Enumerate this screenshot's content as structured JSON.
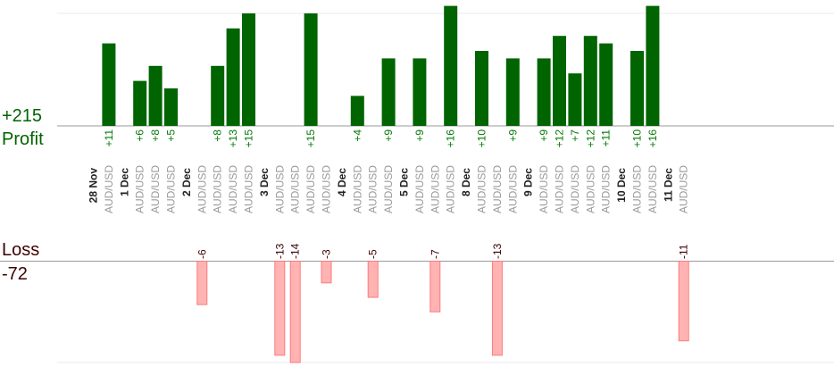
{
  "summary": {
    "profit_total": "+215",
    "profit_label": "Profit",
    "loss_label": "Loss",
    "loss_total": "-72"
  },
  "colors": {
    "profit_bar": "#006400",
    "profit_text": "#007a00",
    "loss_bar": "#ffb3b3",
    "loss_bar_stroke": "#ff7a7a",
    "loss_text": "#3d0000",
    "axis": "#999999",
    "grid": "#e8e8e8",
    "date_text": "#222222",
    "pair_text": "#9a9a9a"
  },
  "chart_data": {
    "type": "bar",
    "description_axis_units": "pips per trade",
    "profit_axis_max": 15,
    "loss_axis_max": 14,
    "grid": true,
    "columns": [
      {
        "kind": "date",
        "label": "28 Nov"
      },
      {
        "kind": "trade",
        "pair": "AUD/USD",
        "value": 11,
        "label": "+11"
      },
      {
        "kind": "date",
        "label": "1 Dec"
      },
      {
        "kind": "trade",
        "pair": "AUD/USD",
        "value": 6,
        "label": "+6"
      },
      {
        "kind": "trade",
        "pair": "AUD/USD",
        "value": 8,
        "label": "+8"
      },
      {
        "kind": "trade",
        "pair": "AUD/USD",
        "value": 5,
        "label": "+5"
      },
      {
        "kind": "date",
        "label": "2 Dec"
      },
      {
        "kind": "trade",
        "pair": "AUD/USD",
        "value": -6,
        "label": "-6"
      },
      {
        "kind": "trade",
        "pair": "AUD/USD",
        "value": 8,
        "label": "+8"
      },
      {
        "kind": "trade",
        "pair": "AUD/USD",
        "value": 13,
        "label": "+13"
      },
      {
        "kind": "trade",
        "pair": "AUD/USD",
        "value": 15,
        "label": "+15"
      },
      {
        "kind": "date",
        "label": "3 Dec"
      },
      {
        "kind": "trade",
        "pair": "AUD/USD",
        "value": -13,
        "label": "-13"
      },
      {
        "kind": "trade",
        "pair": "AUD/USD",
        "value": -14,
        "label": "-14"
      },
      {
        "kind": "trade",
        "pair": "AUD/USD",
        "value": 15,
        "label": "+15"
      },
      {
        "kind": "trade",
        "pair": "AUD/USD",
        "value": -3,
        "label": "-3"
      },
      {
        "kind": "date",
        "label": "4 Dec"
      },
      {
        "kind": "trade",
        "pair": "AUD/USD",
        "value": 4,
        "label": "+4"
      },
      {
        "kind": "trade",
        "pair": "AUD/USD",
        "value": -5,
        "label": "-5"
      },
      {
        "kind": "trade",
        "pair": "AUD/USD",
        "value": 9,
        "label": "+9"
      },
      {
        "kind": "date",
        "label": "5 Dec"
      },
      {
        "kind": "trade",
        "pair": "AUD/USD",
        "value": 9,
        "label": "+9"
      },
      {
        "kind": "trade",
        "pair": "AUD/USD",
        "value": -7,
        "label": "-7"
      },
      {
        "kind": "trade",
        "pair": "AUD/USD",
        "value": 16,
        "label": "+16"
      },
      {
        "kind": "date",
        "label": "8 Dec"
      },
      {
        "kind": "trade",
        "pair": "AUD/USD",
        "value": 10,
        "label": "+10"
      },
      {
        "kind": "trade",
        "pair": "AUD/USD",
        "value": -13,
        "label": "-13"
      },
      {
        "kind": "trade",
        "pair": "AUD/USD",
        "value": 9,
        "label": "+9"
      },
      {
        "kind": "date",
        "label": "9 Dec"
      },
      {
        "kind": "trade",
        "pair": "AUD/USD",
        "value": 9,
        "label": "+9"
      },
      {
        "kind": "trade",
        "pair": "AUD/USD",
        "value": 12,
        "label": "+12"
      },
      {
        "kind": "trade",
        "pair": "AUD/USD",
        "value": 7,
        "label": "+7"
      },
      {
        "kind": "trade",
        "pair": "AUD/USD",
        "value": 12,
        "label": "+12"
      },
      {
        "kind": "trade",
        "pair": "AUD/USD",
        "value": 11,
        "label": "+11"
      },
      {
        "kind": "date",
        "label": "10 Dec"
      },
      {
        "kind": "trade",
        "pair": "AUD/USD",
        "value": 10,
        "label": "+10"
      },
      {
        "kind": "trade",
        "pair": "AUD/USD",
        "value": 16,
        "label": "+16"
      },
      {
        "kind": "date",
        "label": "11 Dec"
      },
      {
        "kind": "trade",
        "pair": "AUD/USD",
        "value": -11,
        "label": "-11"
      }
    ]
  }
}
